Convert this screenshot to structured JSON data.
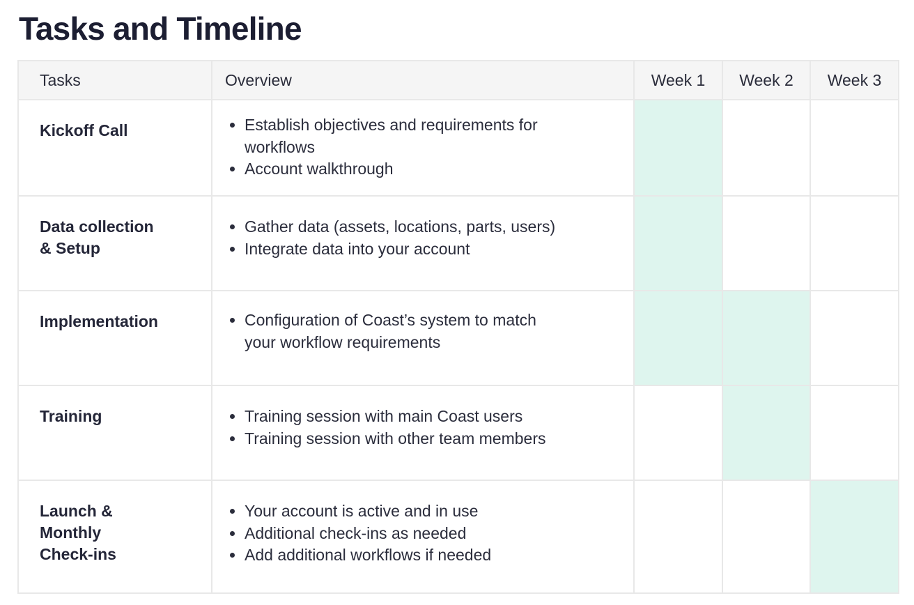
{
  "title": "Tasks and Timeline",
  "headers": {
    "tasks": "Tasks",
    "overview": "Overview",
    "weeks": [
      "Week 1",
      "Week 2",
      "Week 3"
    ]
  },
  "colors": {
    "active_week": "#def5ee",
    "header_bg": "#f5f5f5",
    "border": "#e8e8e8"
  },
  "rows": [
    {
      "task": "Kickoff Call",
      "overview": [
        "Establish objectives and requirements for workflows",
        "Account walkthrough"
      ],
      "weeks": [
        true,
        false,
        false
      ]
    },
    {
      "task": "Data collection & Setup",
      "overview": [
        "Gather data (assets, locations, parts, users)",
        "Integrate data into your account"
      ],
      "weeks": [
        true,
        false,
        false
      ]
    },
    {
      "task": "Implementation",
      "overview": [
        "Configuration of Coast’s system to match your workflow requirements"
      ],
      "weeks": [
        true,
        true,
        false
      ]
    },
    {
      "task": "Training",
      "overview": [
        "Training session with main Coast users",
        "Training session with other team members"
      ],
      "weeks": [
        false,
        true,
        false
      ]
    },
    {
      "task": "Launch & Monthly Check-ins",
      "overview": [
        "Your account is active and in use",
        "Additional check-ins as needed",
        "Add additional workflows if needed"
      ],
      "weeks": [
        false,
        false,
        true
      ]
    }
  ]
}
